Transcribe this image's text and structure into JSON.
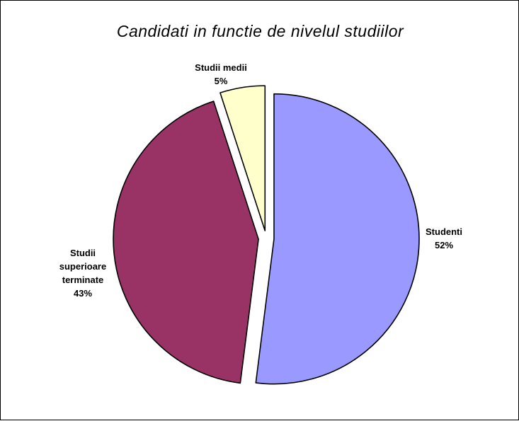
{
  "chart_data": {
    "type": "pie",
    "title": "Candidati in functie de nivelul studiilor",
    "legend": "none",
    "slices": [
      {
        "label": "Studenti",
        "label_lines": [
          "Studenti"
        ],
        "percent_text": "52%",
        "value": 52,
        "color": "#9999ff",
        "exploded": true
      },
      {
        "label": "Studii superioare terminate",
        "label_lines": [
          "Studii",
          "superioare",
          "terminate"
        ],
        "percent_text": "43%",
        "value": 43,
        "color": "#993366",
        "exploded": true
      },
      {
        "label": "Studii medii",
        "label_lines": [
          "Studii medii"
        ],
        "percent_text": "5%",
        "value": 5,
        "color": "#ffffcc",
        "exploded": true
      }
    ]
  }
}
